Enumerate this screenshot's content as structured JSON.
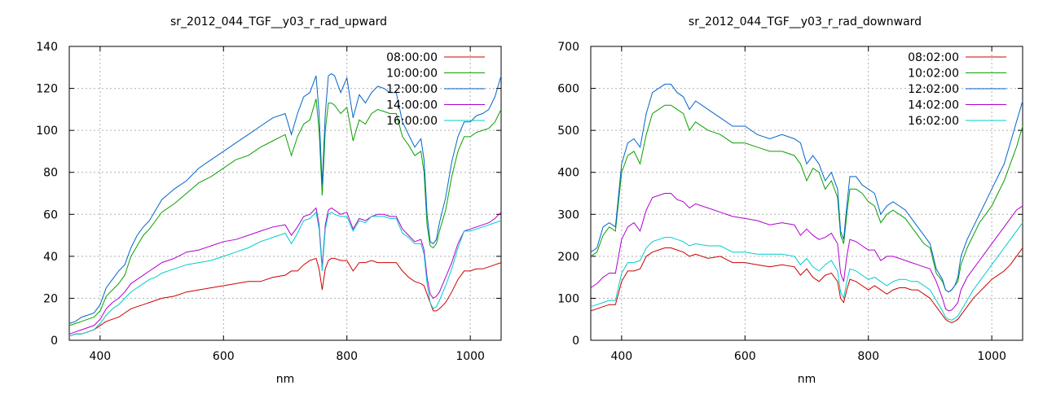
{
  "chart_data": [
    {
      "type": "line",
      "title": "sr_2012_044_TGF__y03_r_rad_upward",
      "xlabel": "nm",
      "ylabel": "",
      "xlim": [
        350,
        1050
      ],
      "ylim": [
        0,
        140
      ],
      "xticks": [
        400,
        600,
        800,
        1000
      ],
      "yticks": [
        0,
        20,
        40,
        60,
        80,
        100,
        120,
        140
      ],
      "grid": true,
      "legend": "top-right",
      "x": [
        350,
        360,
        370,
        380,
        390,
        400,
        410,
        420,
        430,
        440,
        450,
        460,
        470,
        480,
        490,
        500,
        520,
        540,
        560,
        580,
        600,
        620,
        640,
        660,
        680,
        700,
        710,
        720,
        730,
        740,
        750,
        755,
        760,
        765,
        770,
        775,
        780,
        790,
        800,
        810,
        820,
        830,
        840,
        850,
        860,
        870,
        880,
        890,
        900,
        910,
        920,
        925,
        930,
        935,
        940,
        945,
        950,
        960,
        970,
        980,
        990,
        1000,
        1010,
        1020,
        1030,
        1040,
        1050
      ],
      "series": [
        {
          "name": "08:00:00",
          "color": "#cc0000",
          "values": [
            2,
            3,
            3,
            4,
            5,
            7,
            9,
            10,
            11,
            13,
            15,
            16,
            17,
            18,
            19,
            20,
            21,
            23,
            24,
            25,
            26,
            27,
            28,
            28,
            30,
            31,
            33,
            33,
            36,
            38,
            39,
            34,
            24,
            34,
            38,
            39,
            39,
            38,
            38,
            33,
            37,
            37,
            38,
            37,
            37,
            37,
            37,
            33,
            30,
            28,
            27,
            26,
            22,
            18,
            14,
            14,
            15,
            18,
            23,
            29,
            33,
            33,
            34,
            34,
            35,
            36,
            37
          ]
        },
        {
          "name": "10:00:00",
          "color": "#0aa000",
          "values": [
            7,
            8,
            9,
            10,
            11,
            14,
            21,
            24,
            27,
            31,
            40,
            45,
            50,
            53,
            57,
            61,
            65,
            70,
            75,
            78,
            82,
            86,
            88,
            92,
            95,
            98,
            88,
            97,
            103,
            105,
            115,
            100,
            69,
            100,
            113,
            113,
            112,
            108,
            111,
            95,
            105,
            103,
            108,
            110,
            109,
            108,
            108,
            97,
            93,
            88,
            90,
            80,
            55,
            45,
            44,
            46,
            52,
            62,
            78,
            90,
            97,
            97,
            99,
            100,
            101,
            104,
            110
          ]
        },
        {
          "name": "12:00:00",
          "color": "#0066cc",
          "values": [
            8,
            9,
            11,
            12,
            13,
            17,
            25,
            29,
            33,
            36,
            44,
            50,
            54,
            57,
            62,
            67,
            72,
            76,
            82,
            86,
            90,
            94,
            98,
            102,
            106,
            108,
            98,
            108,
            116,
            118,
            126,
            108,
            74,
            108,
            126,
            127,
            126,
            118,
            125,
            106,
            117,
            113,
            118,
            121,
            120,
            118,
            118,
            104,
            98,
            92,
            96,
            86,
            60,
            47,
            46,
            48,
            56,
            68,
            85,
            97,
            104,
            104,
            107,
            108,
            110,
            116,
            126
          ]
        },
        {
          "name": "14:00:00",
          "color": "#b000d0",
          "values": [
            3,
            4,
            5,
            6,
            7,
            10,
            15,
            18,
            20,
            23,
            27,
            29,
            31,
            33,
            35,
            37,
            39,
            42,
            43,
            45,
            47,
            48,
            50,
            52,
            54,
            55,
            50,
            54,
            59,
            60,
            63,
            55,
            35,
            55,
            62,
            63,
            62,
            60,
            61,
            53,
            58,
            57,
            59,
            60,
            60,
            59,
            59,
            53,
            50,
            47,
            48,
            43,
            30,
            22,
            20,
            21,
            23,
            30,
            37,
            46,
            52,
            53,
            54,
            55,
            56,
            58,
            61
          ]
        },
        {
          "name": "16:00:00",
          "color": "#00cccc",
          "values": [
            2,
            3,
            3,
            4,
            5,
            8,
            12,
            15,
            17,
            20,
            23,
            25,
            27,
            29,
            30,
            32,
            34,
            36,
            37,
            38,
            40,
            42,
            44,
            47,
            49,
            51,
            46,
            51,
            57,
            58,
            61,
            53,
            33,
            53,
            60,
            61,
            60,
            59,
            59,
            52,
            57,
            56,
            59,
            59,
            59,
            58,
            58,
            51,
            49,
            46,
            46,
            41,
            27,
            18,
            15,
            16,
            19,
            26,
            34,
            44,
            52,
            52,
            53,
            54,
            55,
            56,
            57
          ]
        }
      ]
    },
    {
      "type": "line",
      "title": "sr_2012_044_TGF__y03_r_rad_downward",
      "xlabel": "nm",
      "ylabel": "",
      "xlim": [
        350,
        1050
      ],
      "ylim": [
        0,
        700
      ],
      "xticks": [
        400,
        600,
        800,
        1000
      ],
      "yticks": [
        0,
        100,
        200,
        300,
        400,
        500,
        600,
        700
      ],
      "grid": true,
      "legend": "top-right",
      "x": [
        350,
        360,
        370,
        380,
        390,
        400,
        410,
        420,
        430,
        440,
        450,
        460,
        470,
        480,
        490,
        500,
        510,
        520,
        540,
        560,
        580,
        600,
        620,
        640,
        660,
        680,
        690,
        700,
        710,
        720,
        730,
        740,
        750,
        755,
        760,
        765,
        770,
        780,
        790,
        800,
        810,
        820,
        830,
        840,
        850,
        860,
        870,
        880,
        890,
        900,
        910,
        920,
        925,
        930,
        935,
        940,
        945,
        950,
        960,
        970,
        980,
        990,
        1000,
        1010,
        1020,
        1030,
        1040,
        1050
      ],
      "series": [
        {
          "name": "08:02:00",
          "color": "#cc0000",
          "values": [
            70,
            75,
            80,
            85,
            85,
            140,
            165,
            165,
            170,
            200,
            210,
            215,
            220,
            220,
            215,
            210,
            200,
            205,
            195,
            200,
            185,
            185,
            180,
            175,
            180,
            175,
            155,
            170,
            150,
            140,
            155,
            160,
            140,
            100,
            90,
            120,
            145,
            140,
            130,
            120,
            130,
            120,
            110,
            120,
            125,
            125,
            120,
            120,
            110,
            100,
            80,
            60,
            50,
            45,
            42,
            45,
            50,
            60,
            80,
            100,
            115,
            130,
            145,
            155,
            165,
            180,
            200,
            220
          ]
        },
        {
          "name": "10:02:00",
          "color": "#0aa000",
          "values": [
            200,
            210,
            250,
            270,
            260,
            400,
            440,
            450,
            420,
            490,
            540,
            550,
            560,
            560,
            550,
            540,
            500,
            520,
            500,
            490,
            470,
            470,
            460,
            450,
            450,
            440,
            420,
            380,
            410,
            400,
            360,
            380,
            340,
            250,
            230,
            300,
            360,
            360,
            350,
            330,
            320,
            280,
            300,
            310,
            300,
            290,
            270,
            250,
            230,
            220,
            160,
            140,
            120,
            115,
            120,
            130,
            140,
            180,
            220,
            250,
            280,
            300,
            320,
            350,
            380,
            420,
            460,
            510
          ]
        },
        {
          "name": "12:02:00",
          "color": "#0066cc",
          "values": [
            210,
            220,
            270,
            280,
            270,
            420,
            470,
            480,
            460,
            540,
            590,
            600,
            610,
            610,
            590,
            580,
            550,
            570,
            550,
            530,
            510,
            510,
            490,
            480,
            490,
            480,
            470,
            420,
            440,
            420,
            380,
            400,
            360,
            260,
            240,
            320,
            390,
            390,
            370,
            360,
            350,
            300,
            320,
            330,
            320,
            310,
            290,
            270,
            250,
            230,
            170,
            145,
            120,
            115,
            120,
            130,
            150,
            200,
            240,
            270,
            300,
            330,
            360,
            390,
            420,
            470,
            520,
            570
          ]
        },
        {
          "name": "14:02:00",
          "color": "#b000d0",
          "values": [
            125,
            135,
            150,
            160,
            160,
            240,
            270,
            280,
            260,
            310,
            340,
            345,
            350,
            350,
            335,
            330,
            315,
            325,
            315,
            305,
            295,
            290,
            285,
            275,
            280,
            275,
            250,
            265,
            250,
            240,
            245,
            255,
            230,
            160,
            140,
            200,
            240,
            235,
            225,
            215,
            215,
            190,
            200,
            200,
            195,
            190,
            185,
            180,
            175,
            170,
            140,
            100,
            75,
            70,
            72,
            80,
            90,
            120,
            150,
            170,
            190,
            210,
            230,
            250,
            270,
            290,
            310,
            320
          ]
        },
        {
          "name": "16:02:00",
          "color": "#00cccc",
          "values": [
            80,
            85,
            90,
            95,
            95,
            160,
            185,
            185,
            190,
            220,
            235,
            240,
            245,
            245,
            240,
            235,
            225,
            230,
            225,
            225,
            210,
            210,
            205,
            205,
            205,
            200,
            180,
            195,
            175,
            165,
            180,
            190,
            165,
            115,
            100,
            140,
            170,
            165,
            155,
            145,
            150,
            140,
            130,
            140,
            145,
            145,
            140,
            140,
            130,
            120,
            95,
            70,
            55,
            50,
            48,
            52,
            58,
            70,
            95,
            120,
            140,
            160,
            180,
            200,
            220,
            240,
            260,
            280
          ]
        }
      ]
    }
  ]
}
